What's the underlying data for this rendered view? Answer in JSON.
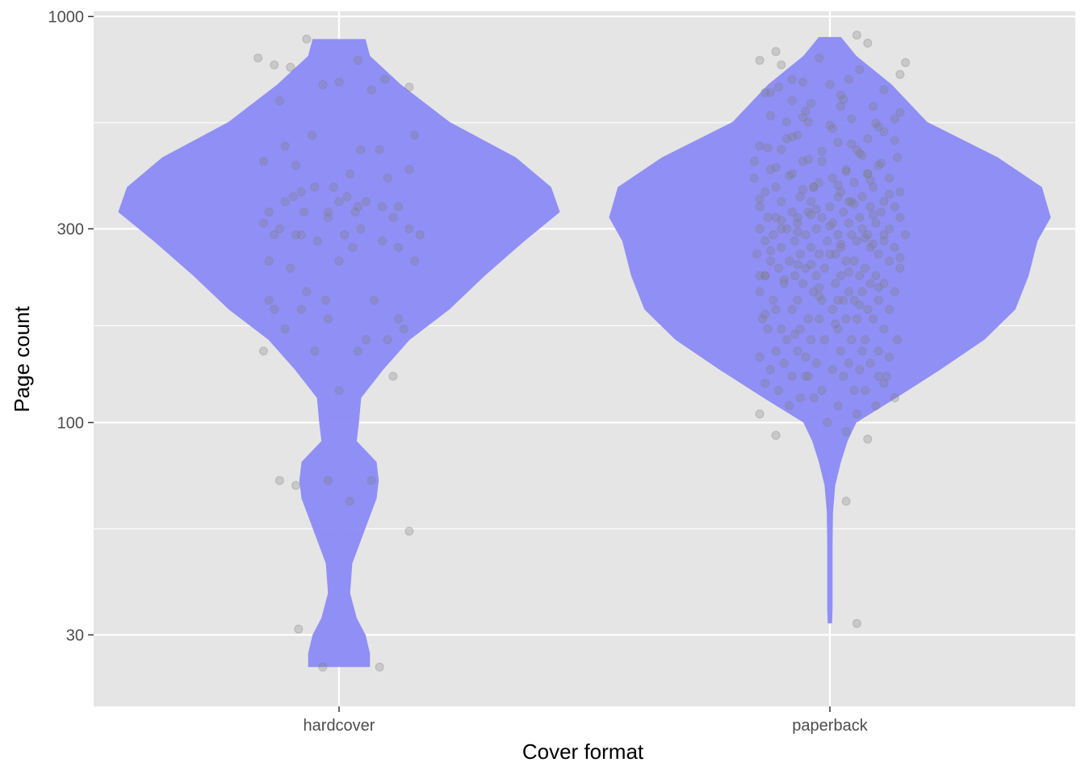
{
  "chart_data": {
    "type": "violin",
    "xlabel": "Cover format",
    "ylabel": "Page count",
    "categories": [
      "hardcover",
      "paperback"
    ],
    "y_scale": "log10",
    "ylim": [
      20,
      1030
    ],
    "y_ticks": [
      30,
      100,
      300,
      1000
    ],
    "y_tick_labels": [
      "30",
      "100",
      "300",
      "1000"
    ],
    "grid": true,
    "legend": "none",
    "colors": {
      "panel": "#e5e5e5",
      "grid": "#ffffff",
      "violin_fill": "#8a8af5",
      "point": "#7f7f7f"
    },
    "violins": [
      {
        "category": "hardcover",
        "range": [
          25,
          880
        ],
        "profile": [
          [
            25,
            0.07
          ],
          [
            27,
            0.07
          ],
          [
            30,
            0.06
          ],
          [
            33,
            0.04
          ],
          [
            38,
            0.025
          ],
          [
            45,
            0.03
          ],
          [
            55,
            0.06
          ],
          [
            65,
            0.085
          ],
          [
            72,
            0.09
          ],
          [
            80,
            0.085
          ],
          [
            90,
            0.04
          ],
          [
            100,
            0.045
          ],
          [
            115,
            0.05
          ],
          [
            135,
            0.1
          ],
          [
            160,
            0.16
          ],
          [
            190,
            0.25
          ],
          [
            230,
            0.33
          ],
          [
            280,
            0.42
          ],
          [
            330,
            0.5
          ],
          [
            380,
            0.48
          ],
          [
            450,
            0.4
          ],
          [
            550,
            0.25
          ],
          [
            680,
            0.14
          ],
          [
            800,
            0.07
          ],
          [
            880,
            0.06
          ]
        ]
      },
      {
        "category": "paperback",
        "range": [
          32,
          890
        ],
        "profile": [
          [
            32,
            0.005
          ],
          [
            35,
            0.006
          ],
          [
            40,
            0.006
          ],
          [
            50,
            0.006
          ],
          [
            60,
            0.007
          ],
          [
            70,
            0.012
          ],
          [
            80,
            0.025
          ],
          [
            90,
            0.04
          ],
          [
            100,
            0.06
          ],
          [
            115,
            0.15
          ],
          [
            135,
            0.25
          ],
          [
            160,
            0.35
          ],
          [
            190,
            0.42
          ],
          [
            230,
            0.45
          ],
          [
            280,
            0.47
          ],
          [
            320,
            0.5
          ],
          [
            380,
            0.48
          ],
          [
            450,
            0.38
          ],
          [
            550,
            0.22
          ],
          [
            680,
            0.14
          ],
          [
            800,
            0.06
          ],
          [
            890,
            0.025
          ]
        ]
      }
    ],
    "points": [
      {
        "category": "hardcover",
        "jitter": [
          -0.06,
          -0.15,
          0.035,
          -0.12,
          -0.09,
          0.085,
          0.0,
          -0.03,
          -0.11,
          0.06,
          0.13,
          0.14,
          -0.05,
          -0.1,
          0.04,
          0.075,
          -0.14,
          -0.08,
          0.13,
          0.02,
          0.09,
          -0.01,
          -0.045,
          -0.07,
          0.015,
          -0.085,
          -0.1,
          0.0,
          0.05,
          0.11,
          0.08,
          0.035,
          -0.13,
          -0.02,
          0.03,
          -0.065,
          -0.02,
          0.1,
          -0.14,
          -0.11,
          0.04,
          0.13,
          -0.07,
          0.01,
          -0.12,
          -0.08,
          0.15,
          0.08,
          -0.04,
          0.025,
          0.11,
          -0.13,
          0.14,
          0.0,
          -0.09,
          -0.06,
          -0.13,
          -0.025,
          0.065,
          -0.12,
          -0.07,
          -0.02,
          0.11,
          -0.1,
          0.12,
          0.05,
          0.09,
          -0.14,
          -0.045,
          0.035,
          0.1,
          0.0,
          -0.02,
          -0.11,
          0.06,
          -0.08,
          0.02,
          0.13,
          -0.075,
          -0.03,
          0.075
        ],
        "values": [
          880,
          790,
          780,
          760,
          750,
          700,
          690,
          680,
          620,
          660,
          670,
          510,
          510,
          480,
          470,
          470,
          440,
          430,
          420,
          410,
          400,
          380,
          380,
          370,
          360,
          360,
          350,
          350,
          350,
          340,
          340,
          340,
          330,
          330,
          330,
          330,
          320,
          320,
          310,
          300,
          300,
          300,
          290,
          290,
          290,
          290,
          290,
          280,
          280,
          270,
          270,
          250,
          250,
          250,
          240,
          210,
          200,
          200,
          200,
          190,
          190,
          180,
          180,
          170,
          170,
          160,
          160,
          150,
          150,
          150,
          130,
          120,
          72,
          72,
          72,
          70,
          64,
          54,
          31,
          25,
          25
        ]
      },
      {
        "category": "paperback",
        "jitter": [
          0.05,
          0.07,
          -0.1,
          -0.13,
          -0.02,
          0.14,
          -0.09,
          0.13,
          0.0,
          0.035,
          -0.05,
          0.1,
          -0.12,
          0.02,
          -0.07,
          -0.035,
          0.08,
          0.13,
          -0.11,
          0.04,
          0.12,
          -0.08,
          -0.04,
          0.0,
          0.1,
          -0.06,
          0.07,
          0.015,
          -0.13,
          -0.09,
          0.055,
          0.125,
          -0.015,
          -0.05,
          0.09,
          -0.11,
          0.03,
          0.07,
          -0.07,
          0.005,
          -0.14,
          0.11,
          -0.02,
          0.045,
          -0.1,
          0.08,
          -0.03,
          0.02,
          0.13,
          -0.12,
          0.06,
          -0.055,
          0.015,
          0.1,
          -0.09,
          -0.035,
          0.04,
          0.12,
          -0.13,
          0.0,
          0.075,
          -0.07,
          0.025,
          -0.04,
          0.095,
          -0.115,
          0.055,
          -0.015,
          0.13,
          -0.1,
          0.035,
          -0.06,
          0.085,
          0.005,
          -0.13,
          0.06,
          -0.025,
          0.11,
          -0.08,
          0.04,
          -0.045,
          0.14,
          -0.105,
          0.015,
          0.07,
          -0.065,
          -0.005,
          0.1,
          -0.12,
          0.05,
          -0.035,
          0.02,
          0.12,
          -0.09,
          0.075,
          -0.055,
          0.0,
          -0.135,
          0.09,
          -0.02,
          0.045,
          -0.075,
          0.11,
          -0.11,
          0.03,
          -0.045,
          0.065,
          -0.01,
          0.13,
          -0.095,
          0.02,
          -0.065,
          0.085,
          -0.025,
          0.055,
          -0.12,
          0.1,
          -0.05,
          0.01,
          0.075,
          -0.085,
          0.035,
          -0.13,
          0.06,
          -0.03,
          0.12,
          -0.105,
          0.025,
          -0.06,
          0.09,
          -0.015,
          0.045,
          -0.1,
          0.005,
          0.07,
          -0.07,
          0.11,
          -0.04,
          0.03,
          -0.125,
          0.08,
          -0.02,
          0.05,
          -0.09,
          0.1,
          -0.055,
          0.015,
          -0.115,
          0.065,
          -0.035,
          0.125,
          -0.08,
          0.04,
          -0.01,
          0.09,
          -0.1,
          0.02,
          0.06,
          -0.06,
          -0.13,
          0.11,
          -0.045,
          0.035,
          -0.085,
          0.075,
          -0.025,
          0.005,
          -0.11,
          0.055,
          0.09,
          -0.07,
          0.025,
          -0.04,
          -0.12,
          0.1,
          -0.015,
          0.045,
          -0.095,
          0.065,
          -0.055,
          0.12,
          -0.03,
          0.015,
          -0.075,
          0.085,
          -0.13,
          0.05,
          -0.005,
          0.03,
          -0.1,
          0.07,
          -0.045,
          0.105,
          -0.065,
          0.01,
          -0.12,
          0.055,
          -0.02,
          0.09,
          -0.085,
          0.035,
          -0.035,
          0.13,
          -0.11,
          0.02,
          0.065,
          -0.06,
          0.0,
          -0.09,
          0.08,
          -0.025,
          0.045,
          -0.13,
          0.11,
          -0.05,
          0.015,
          0.075,
          -0.075,
          0.03,
          -0.1,
          0.095,
          -0.04,
          0.06,
          -0.015,
          -0.115,
          0.04,
          0.12,
          -0.07,
          0.005,
          0.085,
          -0.045,
          0.025,
          -0.095,
          0.055,
          -0.12,
          0.01,
          0.1,
          -0.06,
          0.035,
          -0.03,
          0.07,
          -0.14,
          0.05,
          -0.08,
          0.09,
          -0.05,
          0.02,
          -0.11,
          -0.07,
          0.015,
          -0.02,
          -0.13,
          -0.06,
          0.08,
          -0.09,
          -0.035,
          0.03
        ],
        "values": [
          900,
          860,
          820,
          780,
          790,
          770,
          760,
          720,
          680,
          700,
          690,
          660,
          650,
          640,
          620,
          610,
          600,
          580,
          570,
          560,
          560,
          550,
          550,
          540,
          520,
          510,
          500,
          490,
          480,
          470,
          460,
          450,
          440,
          440,
          430,
          420,
          420,
          410,
          410,
          400,
          400,
          400,
          390,
          390,
          380,
          380,
          380,
          370,
          370,
          370,
          360,
          360,
          360,
          350,
          350,
          350,
          350,
          340,
          340,
          340,
          340,
          330,
          330,
          330,
          330,
          320,
          320,
          320,
          320,
          320,
          310,
          310,
          310,
          310,
          300,
          300,
          300,
          300,
          300,
          290,
          290,
          290,
          290,
          290,
          290,
          280,
          280,
          280,
          280,
          280,
          270,
          270,
          270,
          270,
          270,
          260,
          260,
          260,
          260,
          260,
          250,
          250,
          250,
          250,
          250,
          240,
          240,
          240,
          240,
          240,
          230,
          230,
          230,
          230,
          230,
          230,
          220,
          220,
          220,
          220,
          220,
          210,
          210,
          210,
          210,
          210,
          200,
          200,
          200,
          200,
          200,
          200,
          190,
          190,
          190,
          190,
          190,
          180,
          180,
          180,
          180,
          180,
          180,
          170,
          170,
          170,
          170,
          170,
          160,
          160,
          160,
          160,
          160,
          160,
          150,
          150,
          150,
          150,
          150,
          145,
          145,
          145,
          140,
          140,
          140,
          140,
          135,
          135,
          135,
          130,
          130,
          130,
          130,
          125,
          125,
          120,
          120,
          120,
          120,
          115,
          115,
          115,
          110,
          110,
          110,
          105,
          105,
          100,
          95,
          93,
          91,
          130,
          130,
          165,
          175,
          185,
          195,
          205,
          215,
          225,
          235,
          245,
          255,
          265,
          275,
          285,
          295,
          305,
          315,
          325,
          335,
          345,
          355,
          365,
          375,
          385,
          395,
          405,
          415,
          425,
          435,
          445,
          455,
          465,
          475,
          485,
          495,
          505,
          530,
          545,
          585,
          625,
          670,
          740,
          230,
          260,
          290,
          320,
          350,
          380,
          410,
          440,
          470,
          500,
          535,
          565,
          600,
          650,
          700,
          200,
          215,
          230,
          245,
          275,
          300,
          325,
          64,
          32
        ]
      }
    ]
  }
}
